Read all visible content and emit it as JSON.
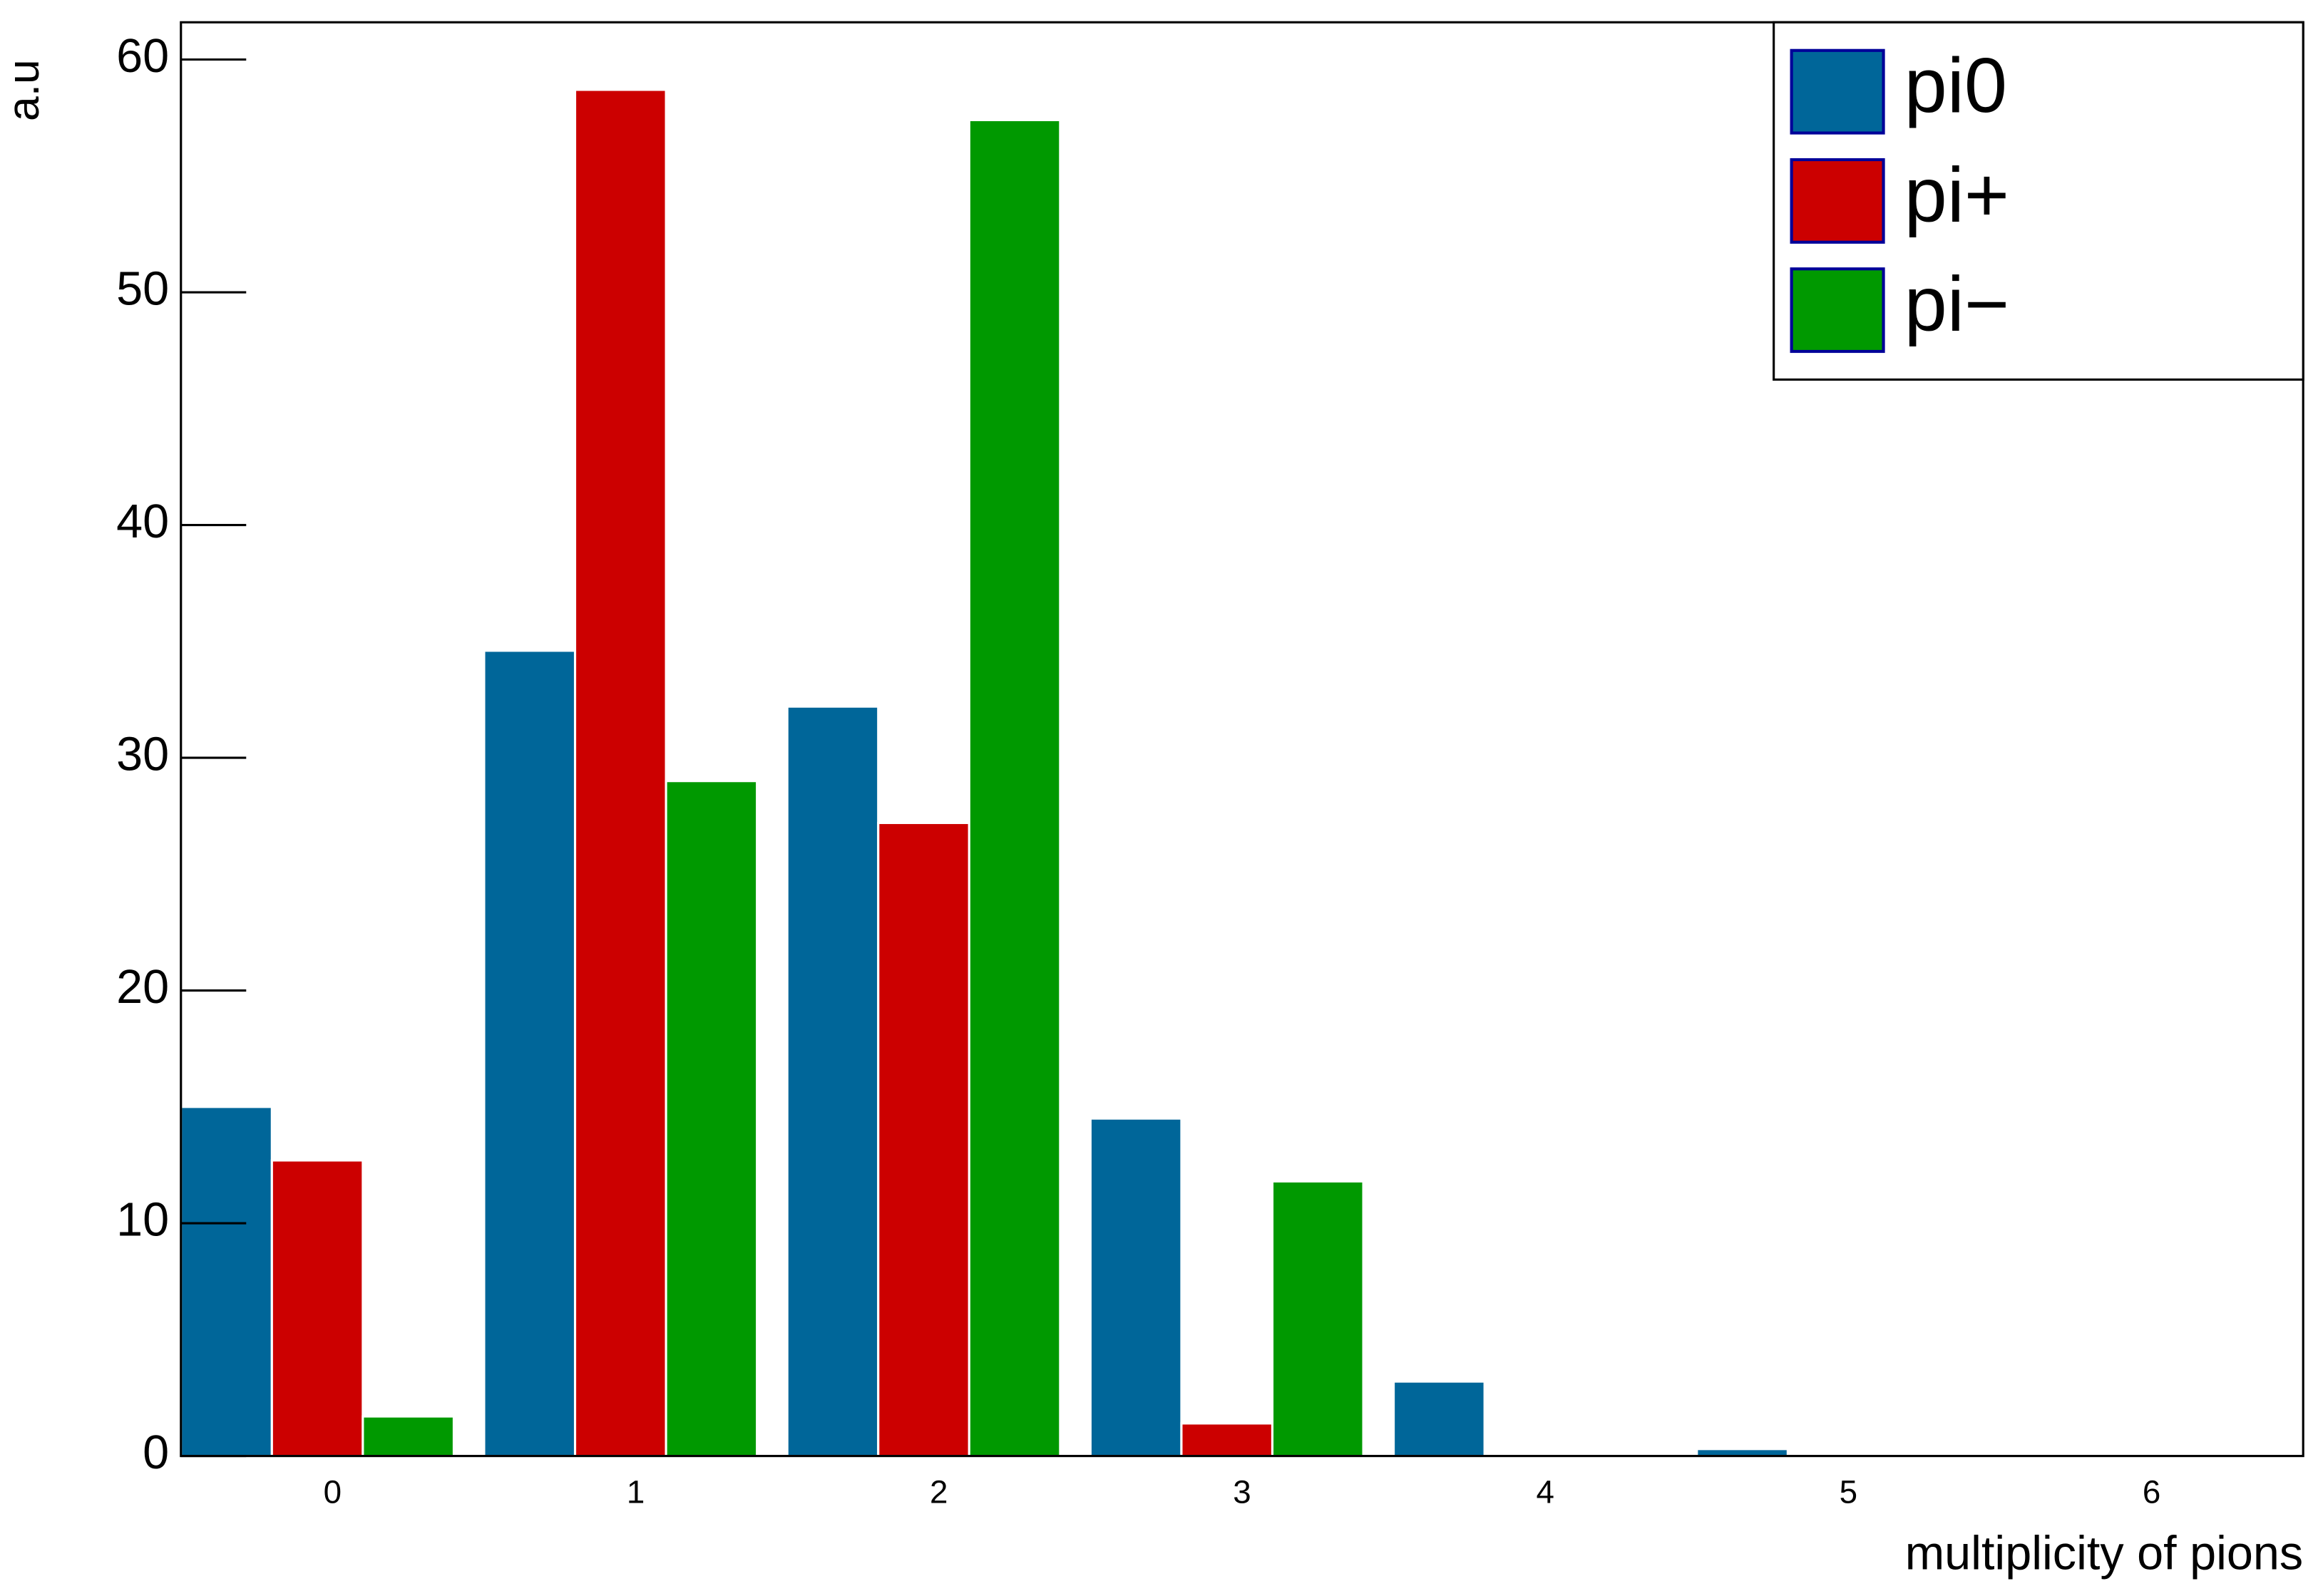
{
  "chart_data": {
    "type": "bar",
    "x_label": "multiplicity of pions",
    "y_label": "a.u",
    "categories": [
      "0",
      "1",
      "2",
      "3",
      "4",
      "5",
      "6"
    ],
    "series": [
      {
        "name": "pi0",
        "color": "#006699",
        "values": [
          15.0,
          34.6,
          32.2,
          14.5,
          3.2,
          0.3,
          0
        ]
      },
      {
        "name": "pi+",
        "color": "#cc0000",
        "values": [
          12.7,
          58.7,
          27.2,
          1.4,
          0,
          0,
          0
        ]
      },
      {
        "name": "pi−",
        "color": "#009900",
        "values": [
          1.7,
          29.0,
          57.4,
          11.8,
          0,
          0,
          0
        ]
      }
    ],
    "ylim": [
      0,
      61.6
    ],
    "yticks": [
      0,
      10,
      20,
      30,
      40,
      50,
      60
    ],
    "legend": "top-right"
  }
}
